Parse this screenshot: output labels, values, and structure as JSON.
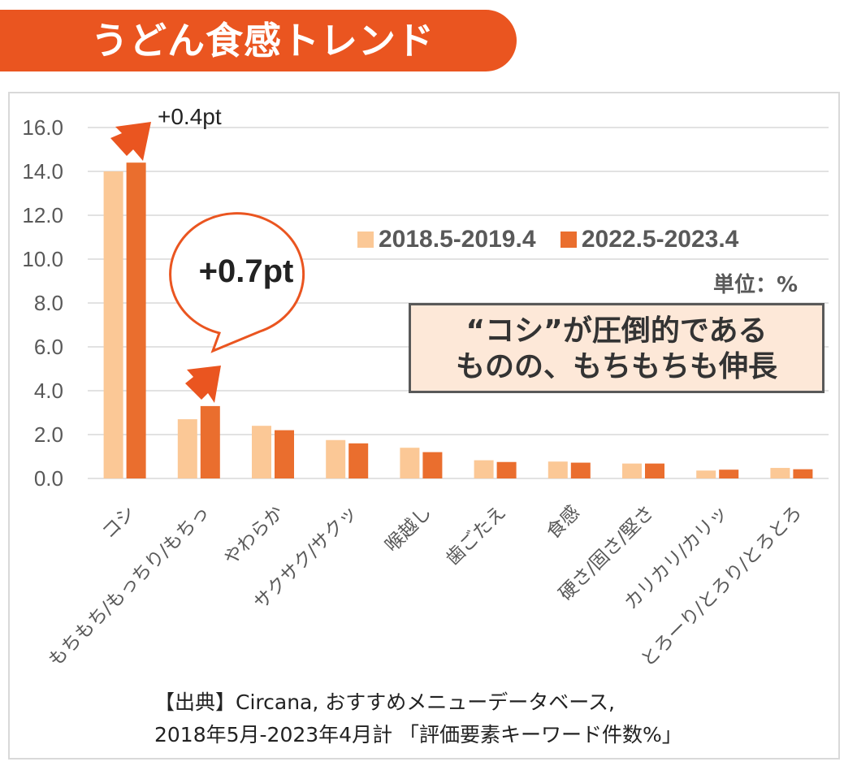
{
  "title": "うどん食感トレンド",
  "chart_data": {
    "type": "bar",
    "categories": [
      "コシ",
      "もちもち/もっちり/もちっ",
      "やわらか",
      "サクサク/サクッ",
      "喉越し",
      "歯ごたえ",
      "食感",
      "硬さ/固さ/堅さ",
      "カリカリ/カリッ",
      "とろーり/とろり/とろとろ"
    ],
    "series": [
      {
        "name": "2018.5-2019.4",
        "color": "#fbc896",
        "values": [
          14.0,
          2.7,
          2.4,
          1.75,
          1.4,
          0.83,
          0.77,
          0.68,
          0.36,
          0.48
        ]
      },
      {
        "name": "2022.5-2023.4",
        "color": "#ea6e2e",
        "values": [
          14.4,
          3.3,
          2.2,
          1.6,
          1.2,
          0.75,
          0.72,
          0.68,
          0.4,
          0.42
        ]
      }
    ],
    "ylim": [
      0,
      16
    ],
    "yticks": [
      "0.0",
      "2.0",
      "4.0",
      "6.0",
      "8.0",
      "10.0",
      "12.0",
      "14.0",
      "16.0"
    ],
    "unit": "単位：%",
    "annotations": {
      "koshi_change": "+0.4pt",
      "mochi_change": "+0.7pt"
    }
  },
  "callout": {
    "line1": "“コシ”が圧倒的である",
    "line2": "ものの、もちもちも伸長"
  },
  "source": {
    "line1": "【出典】Circana, おすすめメニューデータベース,",
    "line2": "2018年5月-2023年4月計 「評価要素キーワード件数%」"
  }
}
